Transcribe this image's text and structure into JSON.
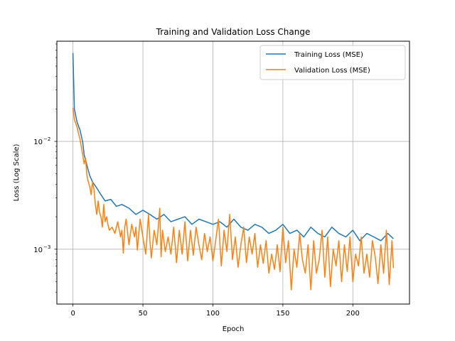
{
  "chart_data": {
    "type": "line",
    "title": "Training and Validation Loss Change",
    "xlabel": "Epoch",
    "ylabel": "Loss (Log Scale)",
    "yscale": "log",
    "xlim": [
      -11.5,
      240.5
    ],
    "ylim": [
      0.00031,
      0.085
    ],
    "grid": true,
    "legend_position": "top-right",
    "x_ticks": [
      {
        "value": 0,
        "label": "0"
      },
      {
        "value": 50,
        "label": "50"
      },
      {
        "value": 100,
        "label": "100"
      },
      {
        "value": 150,
        "label": "150"
      },
      {
        "value": 200,
        "label": "200"
      }
    ],
    "y_ticks": [
      {
        "value": 0.01,
        "label": "10",
        "exp": "−2"
      },
      {
        "value": 0.001,
        "label": "10",
        "exp": "−3"
      }
    ],
    "series": [
      {
        "name": "Training Loss (MSE)",
        "color": "#1f77b4",
        "x": [
          0,
          1,
          3,
          5,
          7,
          8,
          10,
          12,
          14,
          17,
          20,
          23,
          27,
          31,
          35,
          40,
          45,
          50,
          55,
          60,
          65,
          70,
          75,
          80,
          85,
          90,
          95,
          100,
          105,
          110,
          115,
          120,
          125,
          130,
          135,
          140,
          145,
          150,
          155,
          160,
          165,
          170,
          175,
          180,
          185,
          190,
          195,
          200,
          205,
          210,
          215,
          220,
          225,
          229
        ],
        "values": [
          0.066,
          0.02,
          0.015,
          0.0128,
          0.0098,
          0.0075,
          0.006,
          0.0048,
          0.0042,
          0.0037,
          0.0032,
          0.0028,
          0.0029,
          0.0025,
          0.0026,
          0.0024,
          0.0021,
          0.0023,
          0.0021,
          0.0019,
          0.0021,
          0.0018,
          0.0019,
          0.002,
          0.0017,
          0.0019,
          0.0018,
          0.0017,
          0.0018,
          0.0016,
          0.0019,
          0.0016,
          0.0015,
          0.0017,
          0.0016,
          0.0014,
          0.0015,
          0.0017,
          0.0014,
          0.0015,
          0.0013,
          0.0016,
          0.0014,
          0.0013,
          0.0016,
          0.0014,
          0.0013,
          0.0015,
          0.0012,
          0.0014,
          0.0013,
          0.0012,
          0.0014,
          0.00125
        ]
      },
      {
        "name": "Validation Loss (MSE)",
        "color": "#ff7f0e",
        "x": [
          0,
          1,
          3,
          5,
          7,
          8,
          9,
          10,
          11,
          12,
          13,
          14,
          15,
          16,
          17,
          18,
          19,
          20,
          21,
          22,
          23,
          24,
          25,
          26,
          28,
          30,
          32,
          34,
          35,
          36,
          37,
          38,
          40,
          42,
          44,
          45,
          46,
          48,
          50,
          52,
          54,
          55,
          56,
          58,
          60,
          62,
          63,
          64,
          66,
          68,
          70,
          72,
          73,
          74,
          76,
          78,
          80,
          82,
          84,
          86,
          88,
          90,
          92,
          94,
          96,
          98,
          100,
          102,
          104,
          106,
          108,
          110,
          112,
          114,
          116,
          118,
          120,
          122,
          124,
          126,
          128,
          130,
          132,
          134,
          136,
          138,
          140,
          142,
          144,
          146,
          148,
          150,
          152,
          154,
          156,
          158,
          160,
          162,
          164,
          166,
          168,
          170,
          172,
          174,
          176,
          178,
          180,
          182,
          184,
          186,
          188,
          190,
          192,
          194,
          196,
          198,
          200,
          202,
          204,
          206,
          208,
          210,
          212,
          214,
          216,
          218,
          220,
          222,
          224,
          226,
          228,
          229
        ],
        "values": [
          0.0205,
          0.016,
          0.0135,
          0.0105,
          0.0075,
          0.0062,
          0.007,
          0.0048,
          0.0042,
          0.0038,
          0.0032,
          0.0042,
          0.0036,
          0.0026,
          0.0021,
          0.0028,
          0.0022,
          0.002,
          0.0016,
          0.0026,
          0.0018,
          0.002,
          0.0017,
          0.0015,
          0.0016,
          0.0014,
          0.0018,
          0.0013,
          0.0015,
          0.00092,
          0.0016,
          0.0019,
          0.0011,
          0.0017,
          0.0013,
          0.0016,
          0.00098,
          0.0019,
          0.0013,
          0.0009,
          0.0021,
          0.0012,
          0.00083,
          0.0015,
          0.0011,
          0.0024,
          0.00085,
          0.0015,
          0.00095,
          0.0013,
          0.0009,
          0.0016,
          0.0011,
          0.00075,
          0.0015,
          0.0009,
          0.0018,
          0.00078,
          0.0015,
          0.00088,
          0.0016,
          0.0011,
          0.0008,
          0.0014,
          0.00095,
          0.0013,
          0.00078,
          0.0012,
          0.0019,
          0.0007,
          0.0015,
          0.00095,
          0.0021,
          0.0008,
          0.0013,
          0.00068,
          0.0011,
          0.0016,
          0.00075,
          0.0013,
          0.0009,
          0.0014,
          0.00068,
          0.0011,
          0.00074,
          0.0012,
          0.0006,
          0.0009,
          0.00065,
          0.0011,
          0.00062,
          0.0016,
          0.00075,
          0.0012,
          0.00042,
          0.001,
          0.00068,
          0.0014,
          0.0008,
          0.0006,
          0.0011,
          0.00042,
          0.0012,
          0.0006,
          0.0008,
          0.0015,
          0.00055,
          0.0013,
          0.00045,
          0.001,
          0.0007,
          0.0012,
          0.0005,
          0.0011,
          0.00062,
          0.0013,
          0.0005,
          0.0009,
          0.0007,
          0.0013,
          0.0006,
          0.0009,
          0.00055,
          0.0012,
          0.00085,
          0.00048,
          0.0011,
          0.0006,
          0.0015,
          0.00047,
          0.0012,
          0.00067
        ]
      }
    ]
  }
}
